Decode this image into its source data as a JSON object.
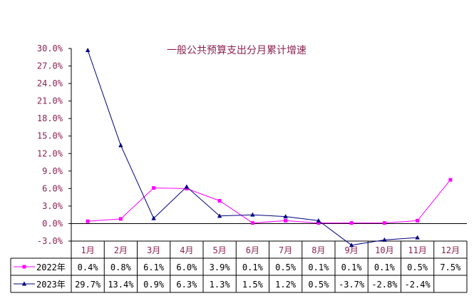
{
  "chart_data": {
    "type": "line",
    "title": "一般公共预算支出分月累计增速",
    "categories": [
      "1月",
      "2月",
      "3月",
      "4月",
      "5月",
      "6月",
      "7月",
      "8月",
      "9月",
      "10月",
      "11月",
      "12月"
    ],
    "yticks": [
      "30.0%",
      "27.0%",
      "24.0%",
      "21.0%",
      "18.0%",
      "15.0%",
      "12.0%",
      "9.0%",
      "6.0%",
      "3.0%",
      "0.0%",
      "-3.0%"
    ],
    "ylim": [
      -3,
      30
    ],
    "grid": false,
    "legend": "data-table-left",
    "series": [
      {
        "name": "2022年",
        "color": "#ff00ff",
        "marker": "square",
        "values": [
          0.4,
          0.8,
          6.1,
          6.0,
          3.9,
          0.1,
          0.5,
          0.1,
          0.1,
          0.1,
          0.5,
          7.5
        ],
        "labels": [
          "0.4%",
          "0.8%",
          "6.1%",
          "6.0%",
          "3.9%",
          "0.1%",
          "0.5%",
          "0.1%",
          "0.1%",
          "0.1%",
          "0.5%",
          "7.5%"
        ]
      },
      {
        "name": "2023年",
        "color": "#000080",
        "marker": "triangle",
        "values": [
          29.7,
          13.4,
          0.9,
          6.3,
          1.3,
          1.5,
          1.2,
          0.5,
          -3.7,
          -2.8,
          -2.4,
          null
        ],
        "labels": [
          "29.7%",
          "13.4%",
          "0.9%",
          "6.3%",
          "1.3%",
          "1.5%",
          "1.2%",
          "0.5%",
          "-3.7%",
          "-2.8%",
          "-2.4%",
          ""
        ]
      }
    ]
  }
}
